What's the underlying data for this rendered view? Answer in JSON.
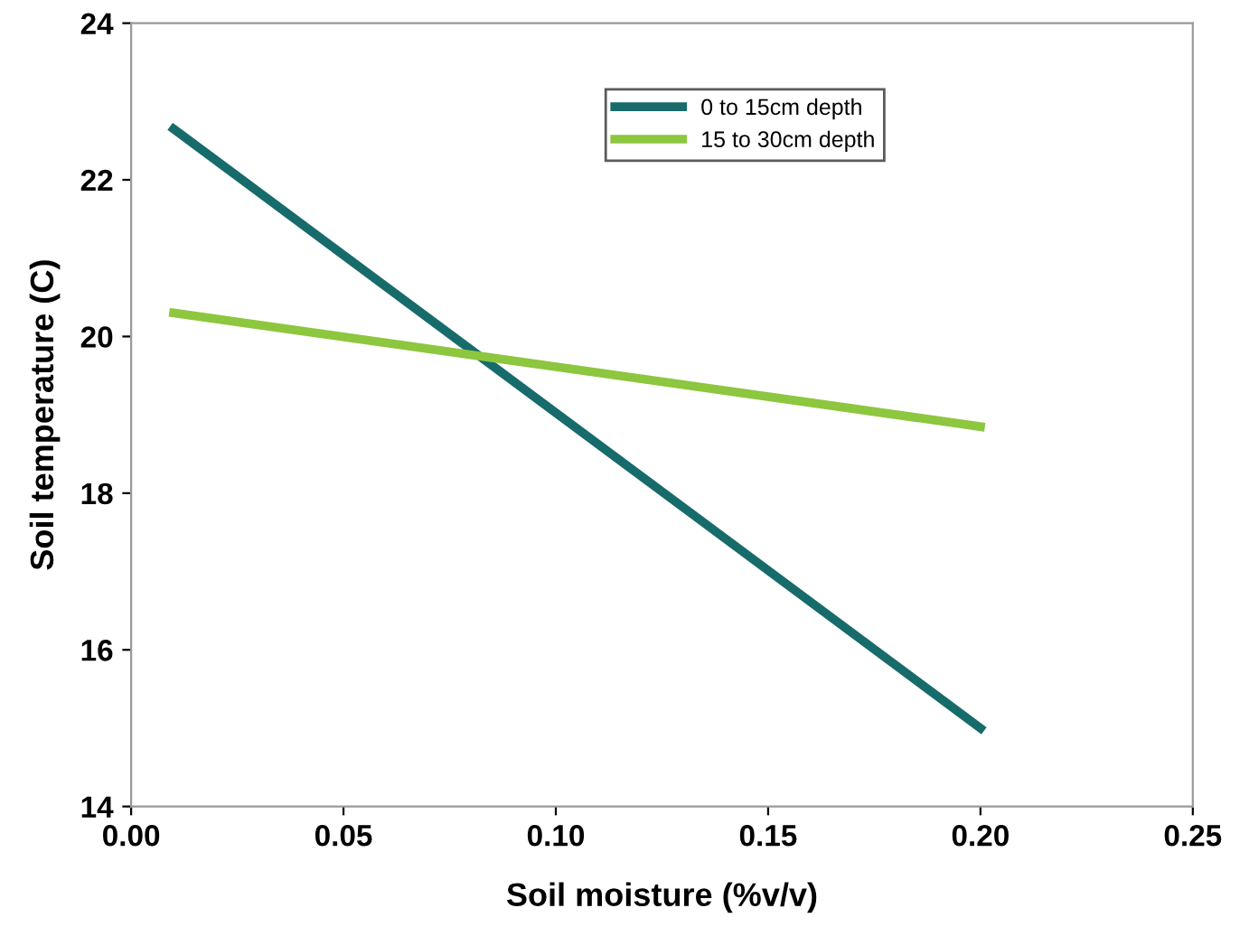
{
  "chart_data": {
    "type": "line",
    "xlabel": "Soil moisture (%v/v)",
    "ylabel": "Soil temperature (C)",
    "x": [
      0.01,
      0.2
    ],
    "series": [
      {
        "name": "0 to 15cm depth",
        "color": "#176b6b",
        "values": [
          22.65,
          15.0
        ]
      },
      {
        "name": "15 to 30cm depth",
        "color": "#8dc63f",
        "values": [
          20.3,
          18.85
        ]
      }
    ],
    "xlim": [
      0,
      0.25
    ],
    "xticks": [
      {
        "value": 0,
        "label": "0.00"
      },
      0.05,
      {
        "value": 0.1,
        "label": "0.10"
      },
      0.15,
      {
        "value": 0.2,
        "label": "0.20"
      },
      0.25
    ],
    "ylim": [
      14,
      24
    ],
    "yticks": [
      14,
      16,
      18,
      20,
      22,
      24
    ],
    "grid": false,
    "legend": "top right",
    "marker": "none",
    "line_style": "solid"
  }
}
